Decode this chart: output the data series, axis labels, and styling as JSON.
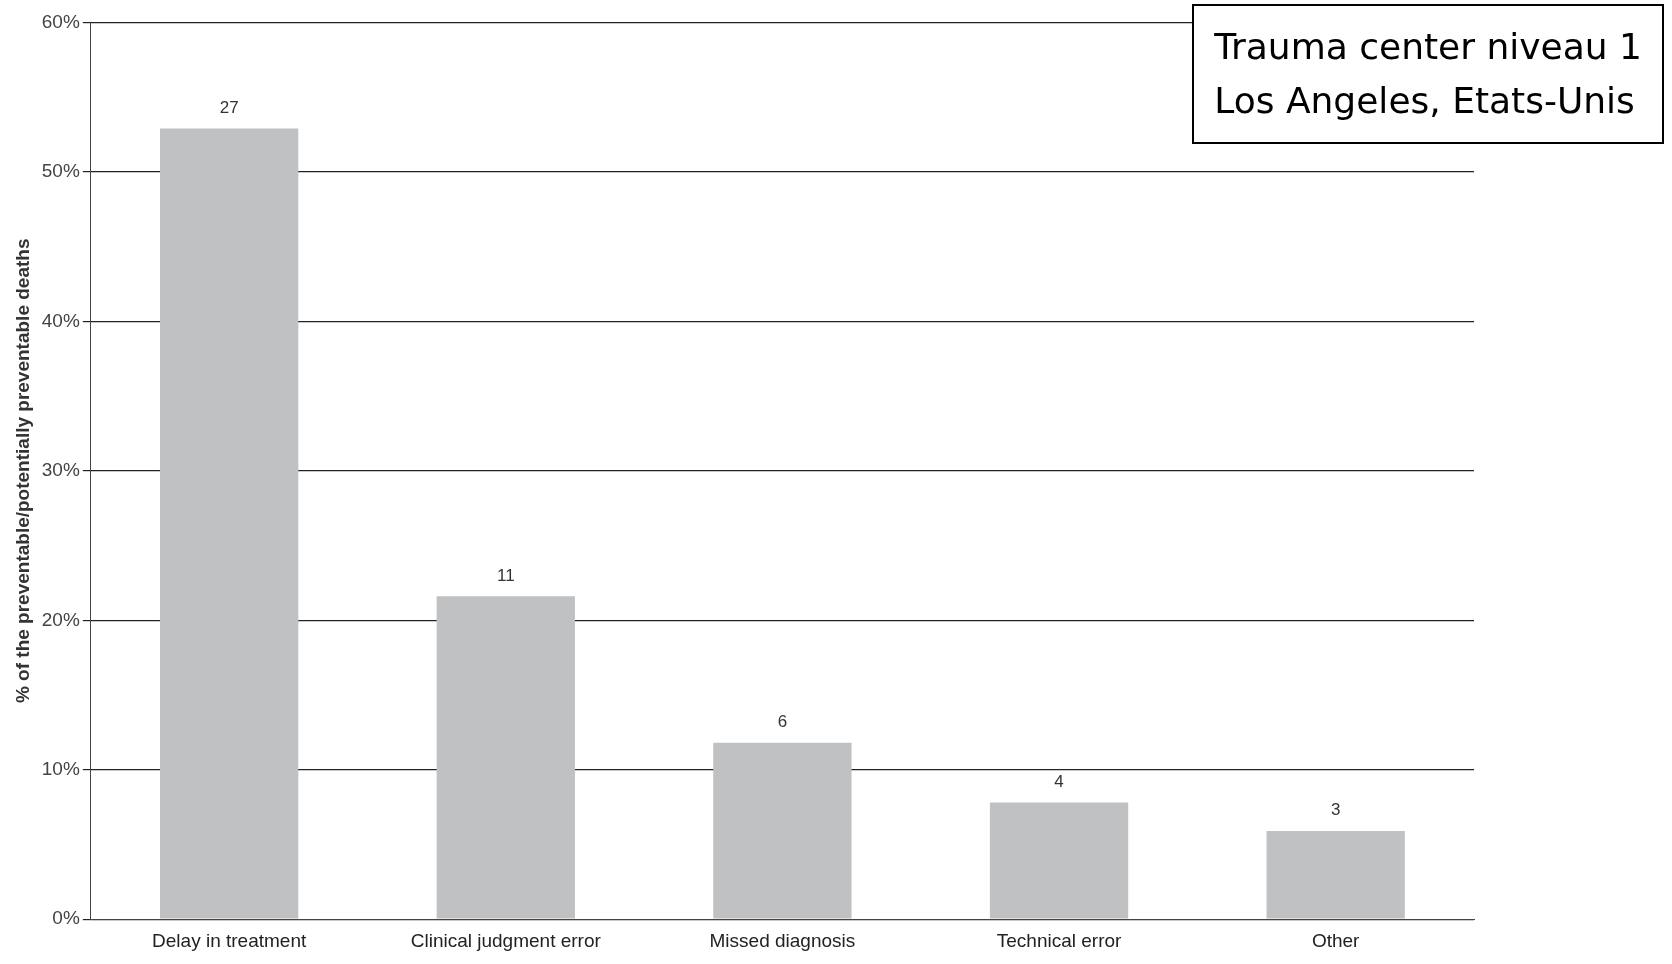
{
  "chart_data": {
    "type": "bar",
    "title": "Trauma center niveau 1",
    "subtitle": "Los Angeles, Etats-Unis",
    "ylabel": "% of the preventable/potentially preventable deaths",
    "categories": [
      "Delay in treatment",
      "Clinical judgment error",
      "Missed diagnosis",
      "Technical error",
      "Other"
    ],
    "values": [
      52.9,
      21.6,
      11.8,
      7.8,
      5.9
    ],
    "annotations": [
      {
        "text": "27",
        "x": "Delay in treatment",
        "y": 52.9
      },
      {
        "text": "11",
        "x": "Clinical judgment error",
        "y": 21.6
      },
      {
        "text": "6",
        "x": "Missed diagnosis",
        "y": 11.8
      },
      {
        "text": "4",
        "x": "Technical error",
        "y": 7.8
      },
      {
        "text": "3",
        "x": "Other",
        "y": 5.9
      }
    ],
    "color": "#c0c1c3",
    "ylim": [
      0,
      60
    ],
    "yticks": [
      {
        "value": 0,
        "label": "0%"
      },
      {
        "value": 10,
        "label": "10%"
      },
      {
        "value": 20,
        "label": "20%"
      },
      {
        "value": 30,
        "label": "30%"
      },
      {
        "value": 40,
        "label": "40%"
      },
      {
        "value": 50,
        "label": "50%"
      },
      {
        "value": 60,
        "label": "60%"
      }
    ],
    "grid": "y",
    "legend": false
  }
}
